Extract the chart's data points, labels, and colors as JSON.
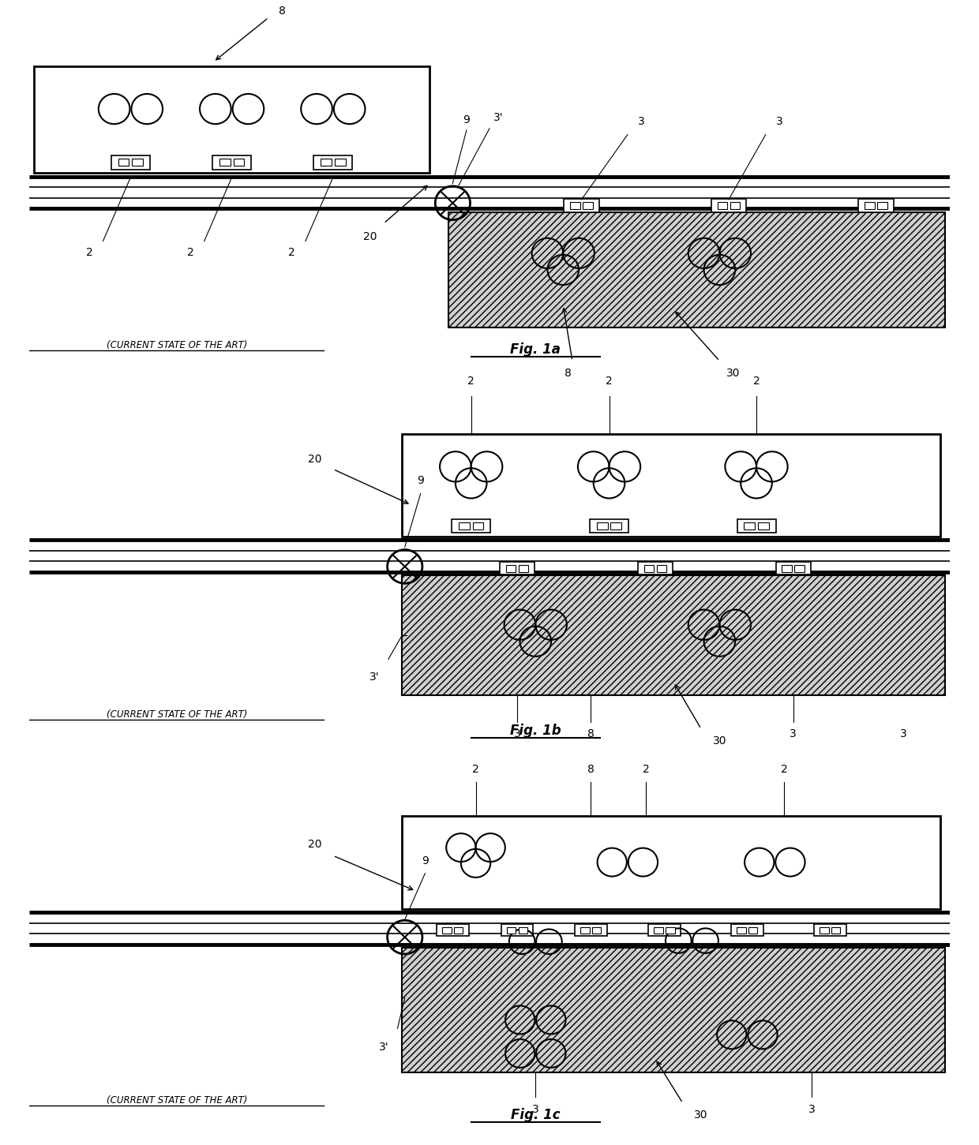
{
  "fig_width": 12.4,
  "fig_height": 14.51,
  "bg_color": "#ffffff",
  "figures": [
    "Fig. 1a",
    "Fig. 1b",
    "Fig. 1c"
  ]
}
